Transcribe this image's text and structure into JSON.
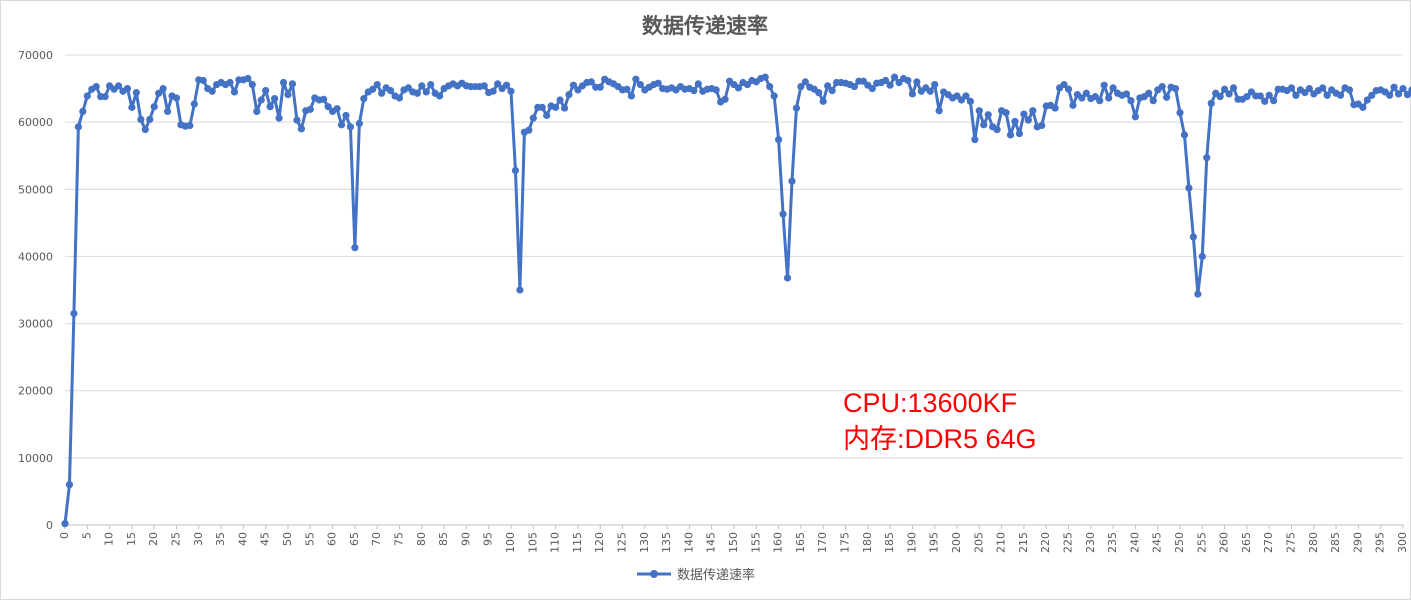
{
  "chart_data": {
    "type": "line",
    "title": "数据传递速率",
    "xlabel": "",
    "ylabel": "",
    "xlim": [
      0,
      300
    ],
    "ylim": [
      0,
      70000
    ],
    "y_ticks": [
      0,
      10000,
      20000,
      30000,
      40000,
      50000,
      60000,
      70000
    ],
    "x_tick_step": 5,
    "grid": "horizontal",
    "legend_position": "bottom",
    "annotations": [
      "CPU:13600KF",
      "内存:DDR5 64G"
    ],
    "colors": {
      "series": "#4472C4",
      "annotation": "#FF0000",
      "grid": "#D9D9D9"
    },
    "series": [
      {
        "name": "数据传递速率",
        "values": [
          200,
          6000,
          31500,
          59300,
          61600,
          63900,
          64900,
          65300,
          63800,
          63800,
          65400,
          64900,
          65400,
          64600,
          65000,
          62200,
          64400,
          60400,
          58900,
          60400,
          62300,
          64300,
          65000,
          61600,
          63900,
          63600,
          59600,
          59400,
          59500,
          62700,
          66300,
          66200,
          65000,
          64600,
          65600,
          65900,
          65600,
          65900,
          64500,
          66300,
          66300,
          66500,
          65600,
          61600,
          63300,
          64700,
          62300,
          63500,
          60600,
          65900,
          64100,
          65700,
          60300,
          59000,
          61700,
          61900,
          63600,
          63300,
          63400,
          62300,
          61600,
          62000,
          59600,
          61000,
          59300,
          41300,
          59800,
          63500,
          64500,
          64900,
          65600,
          64300,
          65100,
          64700,
          63900,
          63600,
          64800,
          65100,
          64500,
          64300,
          65400,
          64500,
          65600,
          64300,
          63900,
          65000,
          65400,
          65700,
          65400,
          65800,
          65400,
          65300,
          65300,
          65300,
          65400,
          64400,
          64600,
          65700,
          65000,
          65500,
          64600,
          52800,
          35000,
          58500,
          58800,
          60600,
          62200,
          62200,
          61000,
          62400,
          62200,
          63300,
          62100,
          64100,
          65500,
          64800,
          65400,
          65900,
          66000,
          65200,
          65200,
          66400,
          66000,
          65700,
          65300,
          64800,
          64900,
          63900,
          66400,
          65600,
          64800,
          65200,
          65600,
          65800,
          65000,
          64900,
          65100,
          64800,
          65300,
          64900,
          65000,
          64700,
          65700,
          64600,
          64900,
          65000,
          64800,
          63000,
          63400,
          66100,
          65600,
          65100,
          65900,
          65600,
          66200,
          66000,
          66500,
          66700,
          65300,
          63900,
          57400,
          46300,
          36800,
          51200,
          62100,
          65300,
          66000,
          65200,
          64900,
          64400,
          63100,
          65400,
          64700,
          65900,
          65900,
          65800,
          65600,
          65300,
          66100,
          66100,
          65500,
          65000,
          65800,
          65900,
          66200,
          65500,
          66700,
          65900,
          66500,
          66200,
          64200,
          66000,
          64600,
          65100,
          64600,
          65600,
          61700,
          64500,
          64100,
          63600,
          63900,
          63300,
          63900,
          63100,
          57400,
          61700,
          59600,
          61100,
          59300,
          58900,
          61700,
          61400,
          58100,
          60100,
          58300,
          61200,
          60300,
          61700,
          59300,
          59500,
          62400,
          62500,
          62100,
          65100,
          65600,
          64900,
          62500,
          64100,
          63600,
          64300,
          63500,
          63800,
          63200,
          65500,
          63600,
          65100,
          64300,
          64000,
          64200,
          63200,
          60800,
          63600,
          63800,
          64300,
          63200,
          64800,
          65300,
          63700,
          65200,
          65000,
          61400,
          58100,
          50200,
          42900,
          34400,
          40000,
          54700,
          62800,
          64300,
          63800,
          64900,
          64200,
          65100,
          63400,
          63400,
          63800,
          64500,
          63900,
          63900,
          63100,
          64000,
          63200,
          64900,
          64900,
          64700,
          65100,
          64000,
          64800,
          64400,
          65000,
          64200,
          64700,
          65100,
          64000,
          64800,
          64300,
          64000,
          65100,
          64800,
          62600,
          62700,
          62200,
          63300,
          64000,
          64700,
          64800,
          64500,
          64000,
          65200,
          64200,
          65000,
          64100,
          64800,
          63900
        ]
      }
    ]
  }
}
